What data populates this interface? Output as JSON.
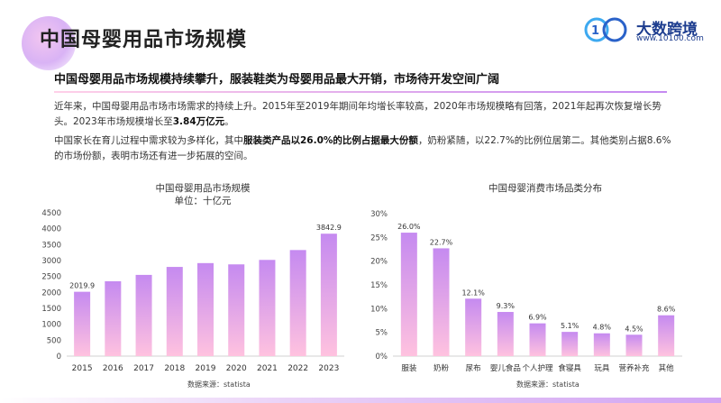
{
  "header": {
    "title": "中国母婴用品市场规模",
    "logo_text": "大数跨境",
    "logo_url": "www.10100.com"
  },
  "subtitle": "中国母婴用品市场规模持续攀升，服装鞋类为母婴用品最大开销，市场待开发空间广阔",
  "paragraphs": {
    "p1_a": "近年来，中国母婴用品市场市场需求的持续上升。2015年至2019年期间年均增长率较高，2020年市场规模略有回落，2021年起再次恢复增长势头。2023年市场规模增长至",
    "p1_b": "3.84万亿元",
    "p1_c": "。",
    "p2_a": "中国家长在育儿过程中需求较为多样化，其中",
    "p2_b": "服装类产品以26.0%的比例占据最大份额",
    "p2_c": "，奶粉紧随，以22.7%的比例位居第二。其他类别占据8.6%的市场份额，表明市场还有进一步拓展的空间。"
  },
  "colors": {
    "bar_top": "#c58af0",
    "bar_bottom": "#ffc2df",
    "axis": "#d0d0d0",
    "accent": "#1d3d8f"
  },
  "chart_data": [
    {
      "type": "bar",
      "title": "中国母婴用品市场规模",
      "unit": "单位：十亿元",
      "categories": [
        "2015",
        "2016",
        "2017",
        "2018",
        "2019",
        "2020",
        "2021",
        "2022",
        "2023"
      ],
      "values": [
        2019.9,
        2350,
        2550,
        2800,
        2920,
        2880,
        3020,
        3330,
        3842.9
      ],
      "data_labels": [
        "2019.9",
        "",
        "",
        "",
        "",
        "",
        "",
        "",
        "3842.9"
      ],
      "ylim": [
        0,
        4500
      ],
      "yticks": [
        "0",
        "500",
        "1000",
        "1500",
        "2000",
        "2500",
        "3000",
        "3500",
        "4000",
        "4500"
      ],
      "source": "数据来源：statista"
    },
    {
      "type": "bar",
      "title": "中国母婴消费市场品类分布",
      "categories": [
        "服装",
        "奶粉",
        "尿布",
        "婴儿食品",
        "个人护理",
        "食寝具",
        "玩具",
        "营养补充",
        "其他"
      ],
      "values": [
        26.0,
        22.7,
        12.1,
        9.3,
        6.9,
        5.1,
        4.8,
        4.5,
        8.6
      ],
      "data_labels": [
        "26.0%",
        "22.7%",
        "12.1%",
        "9.3%",
        "6.9%",
        "5.1%",
        "4.8%",
        "4.5%",
        "8.6%"
      ],
      "ylim": [
        0,
        30
      ],
      "yticks": [
        "0%",
        "5%",
        "10%",
        "15%",
        "20%",
        "25%",
        "30%"
      ],
      "source": "数据来源：statista"
    }
  ]
}
